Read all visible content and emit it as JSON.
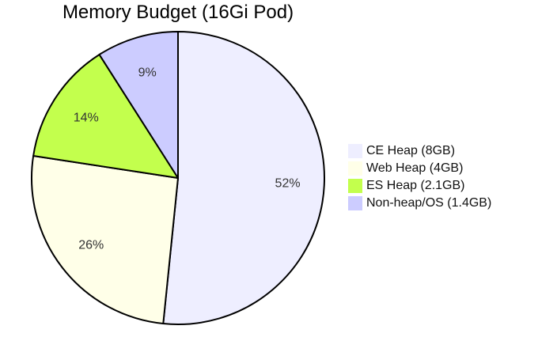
{
  "chart_data": {
    "type": "pie",
    "title": "Memory Budget (16Gi Pod)",
    "legend_position": "right",
    "start_angle_deg": 90,
    "direction": "clockwise",
    "slices": [
      {
        "label": "CE Heap (8GB)",
        "value": 8.0,
        "percent_label": "52%",
        "color": "#eeeeff"
      },
      {
        "label": "Web Heap (4GB)",
        "value": 4.0,
        "percent_label": "26%",
        "color": "#ffffe8"
      },
      {
        "label": "ES Heap (2.1GB)",
        "value": 2.1,
        "percent_label": "14%",
        "color": "#c3ff4d"
      },
      {
        "label": "Non-heap/OS (1.4GB)",
        "value": 1.4,
        "percent_label": "9%",
        "color": "#ccccff"
      }
    ]
  }
}
